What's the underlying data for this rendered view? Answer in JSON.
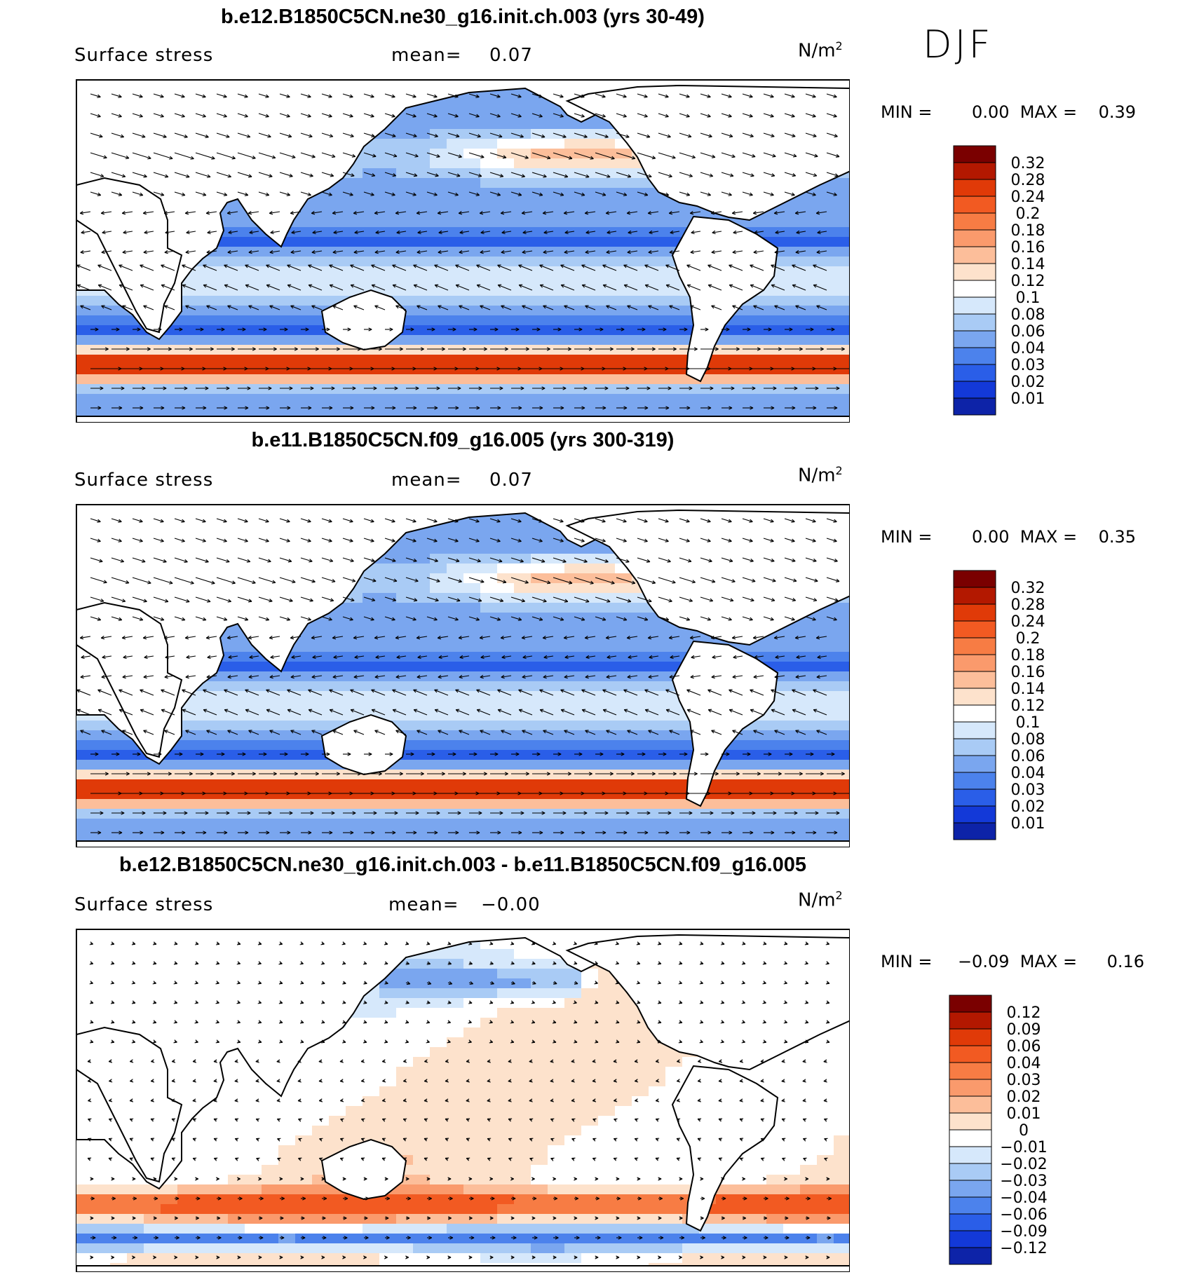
{
  "season": "DJF",
  "panels": [
    {
      "title": "b.e12.B1850C5CN.ne30_g16.init.ch.003 (yrs 30-49)",
      "variable": "Surface stress",
      "mean_label": "mean=",
      "mean_value": "0.07",
      "units": "N/m",
      "units_sup": "2",
      "min_label": "MIN =",
      "min_value": "0.00",
      "max_label": "MAX =",
      "max_value": "0.39",
      "colorbar_levels": [
        "0.32",
        "0.28",
        "0.24",
        "0.2",
        "0.18",
        "0.16",
        "0.14",
        "0.12",
        "0.1",
        "0.08",
        "0.06",
        "0.04",
        "0.03",
        "0.02",
        "0.01"
      ],
      "colorbar_colors": [
        "#7a0000",
        "#b31800",
        "#e03a08",
        "#f25a22",
        "#f77c44",
        "#fa9a6c",
        "#fcbe9a",
        "#fde2cc",
        "#ffffff",
        "#d6e8fb",
        "#a9cbf5",
        "#7aa6ef",
        "#4c82ec",
        "#2a5ee8",
        "#1339d8",
        "#0d23a8"
      ],
      "field": "abs"
    },
    {
      "title": "b.e11.B1850C5CN.f09_g16.005 (yrs 300-319)",
      "variable": "Surface stress",
      "mean_label": "mean=",
      "mean_value": "0.07",
      "units": "N/m",
      "units_sup": "2",
      "min_label": "MIN =",
      "min_value": "0.00",
      "max_label": "MAX =",
      "max_value": "0.35",
      "colorbar_levels": [
        "0.32",
        "0.28",
        "0.24",
        "0.2",
        "0.18",
        "0.16",
        "0.14",
        "0.12",
        "0.1",
        "0.08",
        "0.06",
        "0.04",
        "0.03",
        "0.02",
        "0.01"
      ],
      "colorbar_colors": [
        "#7a0000",
        "#b31800",
        "#e03a08",
        "#f25a22",
        "#f77c44",
        "#fa9a6c",
        "#fcbe9a",
        "#fde2cc",
        "#ffffff",
        "#d6e8fb",
        "#a9cbf5",
        "#7aa6ef",
        "#4c82ec",
        "#2a5ee8",
        "#1339d8",
        "#0d23a8"
      ],
      "field": "abs"
    },
    {
      "title": "b.e12.B1850C5CN.ne30_g16.init.ch.003 - b.e11.B1850C5CN.f09_g16.005",
      "variable": "Surface stress",
      "mean_label": "mean=",
      "mean_value": "−0.00",
      "units": "N/m",
      "units_sup": "2",
      "min_label": "MIN =",
      "min_value": "−0.09",
      "max_label": "MAX =",
      "max_value": "0.16",
      "colorbar_levels": [
        "0.12",
        "0.09",
        "0.06",
        "0.04",
        "0.03",
        "0.02",
        "0.01",
        "0",
        "−0.01",
        "−0.02",
        "−0.03",
        "−0.04",
        "−0.06",
        "−0.09",
        "−0.12"
      ],
      "colorbar_colors": [
        "#7a0000",
        "#b31800",
        "#e03a08",
        "#f25a22",
        "#f77c44",
        "#fa9a6c",
        "#fcbe9a",
        "#fde2cc",
        "#ffffff",
        "#d6e8fb",
        "#a9cbf5",
        "#7aa6ef",
        "#4c82ec",
        "#2a5ee8",
        "#1339d8",
        "#0d23a8"
      ],
      "field": "diff"
    }
  ]
}
